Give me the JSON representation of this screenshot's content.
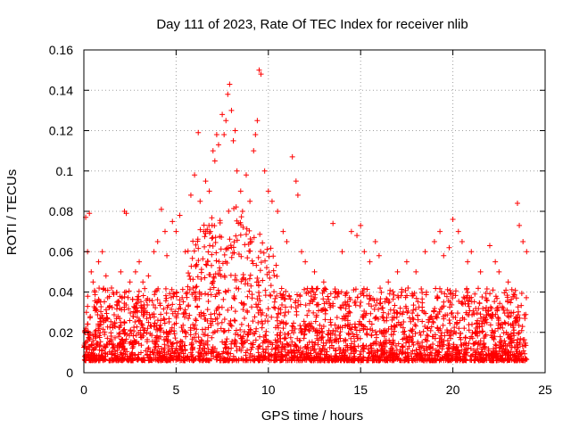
{
  "chart_data": {
    "type": "scatter",
    "title": "Day 111 of 2023, Rate Of TEC Index for receiver nlib",
    "xlabel": "GPS time / hours",
    "ylabel": "ROTI / TECUs",
    "xlim": [
      0,
      25
    ],
    "ylim": [
      0,
      0.16
    ],
    "xticks": [
      "0",
      "5",
      "10",
      "15",
      "20",
      "25"
    ],
    "yticks": [
      "0",
      "0.02",
      "0.04",
      "0.06",
      "0.08",
      "0.1",
      "0.12",
      "0.14",
      "0.16"
    ],
    "grid": true,
    "marker": "plus",
    "color": "#ff0000",
    "series": [
      {
        "x": [
          0.1,
          0.2,
          0.3,
          0.4,
          0.5,
          0.6,
          0.8,
          1.0,
          1.2,
          1.5,
          1.8,
          2.0,
          2.2,
          2.3,
          2.5,
          2.8,
          3.0,
          3.2,
          3.5,
          3.8,
          4.0,
          4.2,
          4.4,
          4.5,
          4.8,
          5.0,
          5.2,
          5.5,
          5.8,
          6.0,
          6.2,
          6.3,
          6.5,
          6.6,
          6.8,
          7.0,
          7.1,
          7.2,
          7.3,
          7.5,
          7.6,
          7.7,
          7.8,
          7.9,
          8.0,
          8.1,
          8.2,
          8.3,
          8.5,
          8.6,
          8.8,
          9.0,
          9.2,
          9.3,
          9.4,
          9.5,
          9.6,
          9.8,
          10.0,
          10.2,
          10.5,
          10.8,
          11.0,
          11.3,
          11.5,
          11.6,
          11.8,
          12.0,
          12.5,
          13.0,
          13.5,
          14.0,
          14.5,
          14.8,
          15.0,
          15.2,
          15.5,
          15.8,
          16.0,
          16.5,
          17.0,
          17.5,
          18.0,
          18.5,
          19.0,
          19.3,
          19.5,
          19.8,
          20.0,
          20.3,
          20.5,
          20.8,
          21.0,
          21.5,
          22.0,
          22.3,
          22.5,
          23.0,
          23.5,
          23.6,
          23.8,
          24.0
        ],
        "y": [
          0.077,
          0.06,
          0.079,
          0.05,
          0.045,
          0.04,
          0.055,
          0.06,
          0.048,
          0.042,
          0.035,
          0.05,
          0.08,
          0.079,
          0.045,
          0.05,
          0.055,
          0.045,
          0.048,
          0.06,
          0.065,
          0.081,
          0.07,
          0.058,
          0.075,
          0.07,
          0.078,
          0.06,
          0.088,
          0.098,
          0.119,
          0.085,
          0.07,
          0.095,
          0.09,
          0.11,
          0.105,
          0.118,
          0.113,
          0.128,
          0.118,
          0.125,
          0.138,
          0.143,
          0.13,
          0.115,
          0.12,
          0.1,
          0.09,
          0.08,
          0.098,
          0.085,
          0.11,
          0.118,
          0.125,
          0.15,
          0.148,
          0.1,
          0.09,
          0.085,
          0.08,
          0.07,
          0.065,
          0.107,
          0.095,
          0.088,
          0.06,
          0.055,
          0.05,
          0.045,
          0.074,
          0.06,
          0.07,
          0.068,
          0.073,
          0.06,
          0.055,
          0.065,
          0.058,
          0.045,
          0.05,
          0.055,
          0.05,
          0.06,
          0.065,
          0.07,
          0.058,
          0.062,
          0.076,
          0.07,
          0.065,
          0.055,
          0.06,
          0.05,
          0.063,
          0.055,
          0.05,
          0.045,
          0.084,
          0.073,
          0.065,
          0.06
        ]
      }
    ]
  }
}
